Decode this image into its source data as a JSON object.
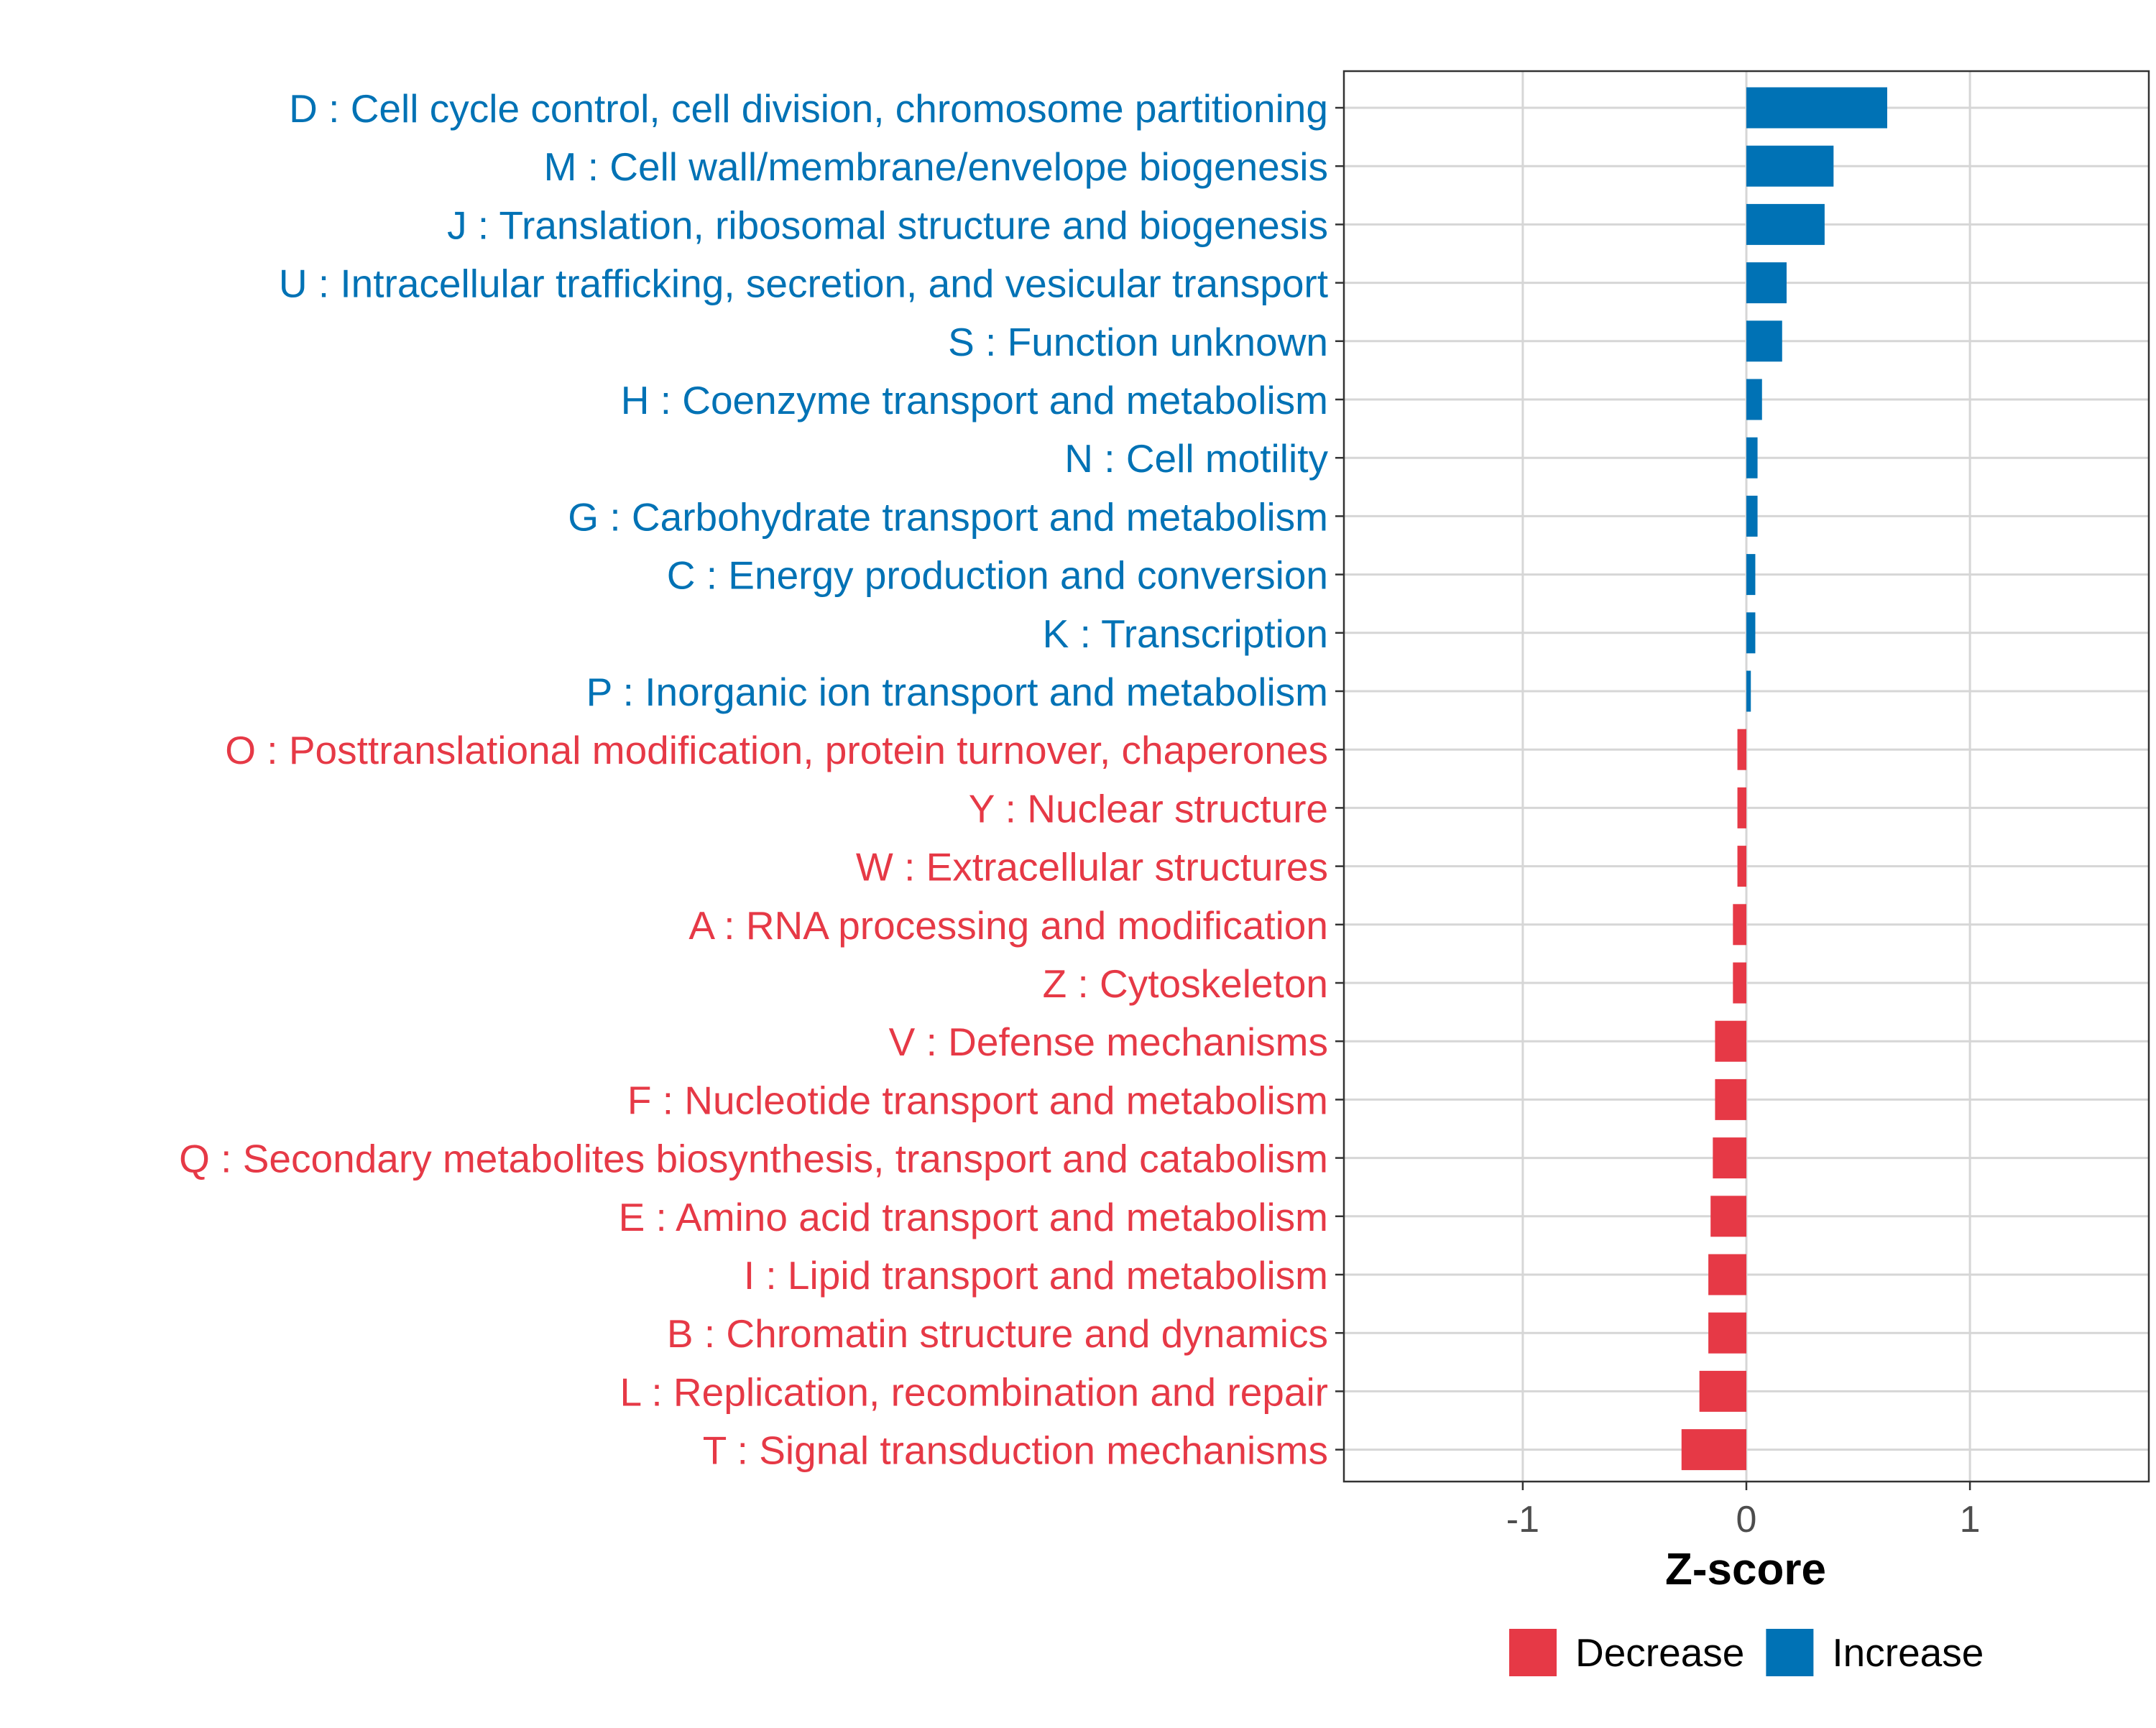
{
  "chart_data": {
    "type": "bar",
    "orientation": "horizontal",
    "title": "",
    "xlabel": "Z-score",
    "ylabel": "",
    "xlim": [
      -1.8,
      1.8
    ],
    "xticks": [
      -1,
      0,
      1
    ],
    "xtick_labels": [
      "-1",
      "0",
      "1"
    ],
    "grid": true,
    "legend_position": "bottom",
    "colors": {
      "Increase": "#0072b5",
      "Decrease": "#e63946"
    },
    "legend": [
      {
        "name": "Decrease",
        "color": "#e63946"
      },
      {
        "name": "Increase",
        "color": "#0072b5"
      }
    ],
    "categories": [
      "D : Cell cycle control, cell division, chromosome partitioning",
      "M : Cell wall/membrane/envelope biogenesis",
      "J : Translation, ribosomal structure and biogenesis",
      "U : Intracellular trafficking, secretion, and vesicular transport",
      "S : Function unknown",
      "H : Coenzyme transport and metabolism",
      "N : Cell motility",
      "G : Carbohydrate transport and metabolism",
      "C : Energy production and conversion",
      "K : Transcription",
      "P : Inorganic ion transport and metabolism",
      "O : Posttranslational modification, protein turnover, chaperones",
      "Y : Nuclear structure",
      "W : Extracellular structures",
      "A : RNA processing and modification",
      "Z : Cytoskeleton",
      "V : Defense mechanisms",
      "F : Nucleotide transport and metabolism",
      "Q : Secondary metabolites biosynthesis, transport and catabolism",
      "E : Amino acid transport and metabolism",
      "I : Lipid transport and metabolism",
      "B : Chromatin structure and dynamics",
      "L : Replication, recombination and repair",
      "T : Signal transduction mechanisms"
    ],
    "values": [
      0.63,
      0.39,
      0.35,
      0.18,
      0.16,
      0.07,
      0.05,
      0.05,
      0.04,
      0.04,
      0.02,
      -0.04,
      -0.04,
      -0.04,
      -0.06,
      -0.06,
      -0.14,
      -0.14,
      -0.15,
      -0.16,
      -0.17,
      -0.17,
      -0.21,
      -0.29
    ],
    "groups": [
      "Increase",
      "Increase",
      "Increase",
      "Increase",
      "Increase",
      "Increase",
      "Increase",
      "Increase",
      "Increase",
      "Increase",
      "Increase",
      "Decrease",
      "Decrease",
      "Decrease",
      "Decrease",
      "Decrease",
      "Decrease",
      "Decrease",
      "Decrease",
      "Decrease",
      "Decrease",
      "Decrease",
      "Decrease",
      "Decrease"
    ]
  }
}
